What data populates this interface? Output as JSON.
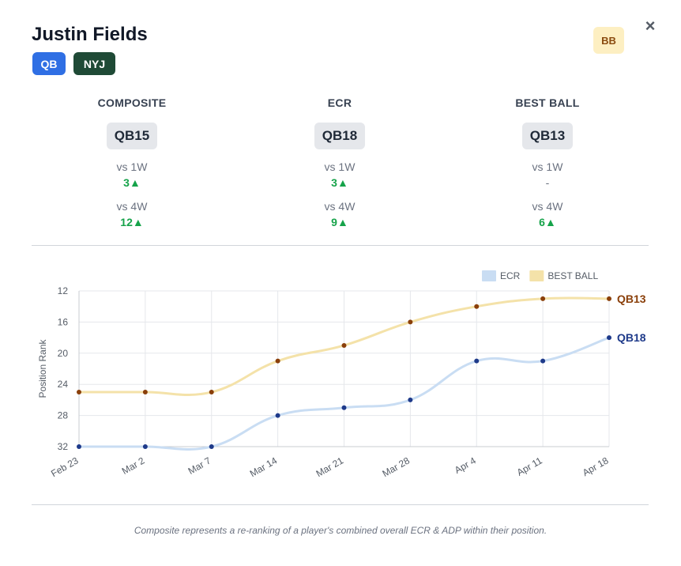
{
  "header": {
    "player_name": "Justin Fields",
    "position_tag": "QB",
    "team_tag": "NYJ",
    "bb_badge": "BB",
    "close_label": "×"
  },
  "ranks": [
    {
      "title": "COMPOSITE",
      "rank": "QB15",
      "vs1w_label": "vs 1W",
      "vs1w_value": "3▲",
      "vs4w_label": "vs 4W",
      "vs4w_value": "12▲"
    },
    {
      "title": "ECR",
      "rank": "QB18",
      "vs1w_label": "vs 1W",
      "vs1w_value": "3▲",
      "vs4w_label": "vs 4W",
      "vs4w_value": "9▲"
    },
    {
      "title": "BEST BALL",
      "rank": "QB13",
      "vs1w_label": "vs 1W",
      "vs1w_value": "-",
      "vs4w_label": "vs 4W",
      "vs4w_value": "6▲"
    }
  ],
  "chart_data": {
    "type": "line",
    "categories": [
      "Feb 23",
      "Mar 2",
      "Mar 7",
      "Mar 14",
      "Mar 21",
      "Mar 28",
      "Apr 4",
      "Apr 11",
      "Apr 18"
    ],
    "ylabel": "Position Rank",
    "ylim": [
      12,
      32
    ],
    "y_reversed": true,
    "yticks": [
      12,
      16,
      20,
      24,
      28,
      32
    ],
    "grid": true,
    "legend_position": "top-right",
    "series": [
      {
        "name": "ECR",
        "values": [
          32,
          32,
          32,
          28,
          27,
          26,
          21,
          21,
          18
        ],
        "line_color": "#c9ddf3",
        "point_color": "#1e3a8a",
        "end_label": "QB18"
      },
      {
        "name": "BEST BALL",
        "values": [
          25,
          25,
          25,
          21,
          19,
          16,
          14,
          13,
          13
        ],
        "line_color": "#f4e2a9",
        "point_color": "#8a3f0a",
        "end_label": "QB13"
      }
    ]
  },
  "footnote": "Composite represents a re-ranking of a player's combined overall ECR & ADP within their position."
}
